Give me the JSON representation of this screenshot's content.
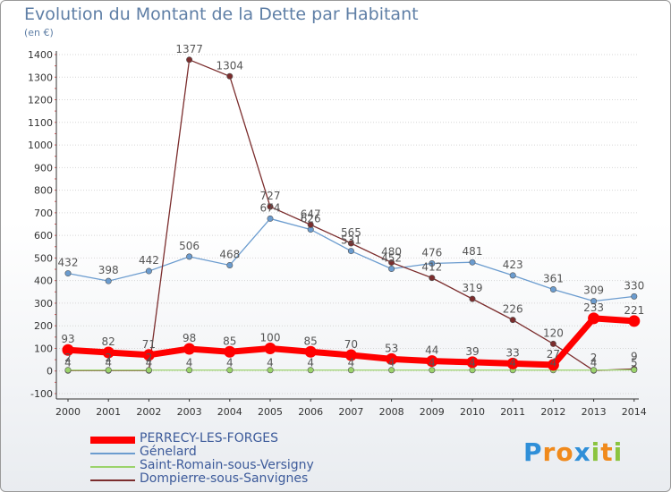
{
  "chart_data": {
    "type": "line",
    "title": "Evolution du Montant de la Dette par Habitant",
    "subtitle": "(en €)",
    "x": [
      "2000",
      "2001",
      "2002",
      "2003",
      "2004",
      "2005",
      "2006",
      "2007",
      "2008",
      "2009",
      "2010",
      "2011",
      "2012",
      "2013",
      "2014"
    ],
    "yticks": [
      -100,
      0,
      100,
      200,
      300,
      400,
      500,
      600,
      700,
      800,
      900,
      1000,
      1100,
      1200,
      1300,
      1400
    ],
    "ylim": [
      -100,
      1400
    ],
    "grid": "horizontal",
    "legend_position": "bottom-left",
    "series": [
      {
        "name": "PERRECY-LES-FORGES",
        "color": "#ff0000",
        "values": [
          93,
          82,
          71,
          98,
          85,
          100,
          85,
          70,
          53,
          44,
          39,
          33,
          27,
          233,
          221
        ],
        "labels": [
          "93",
          "82",
          "71",
          "98",
          "85",
          "100",
          "85",
          "70",
          "53",
          "44",
          "39",
          "33",
          "27",
          "233",
          "221"
        ]
      },
      {
        "name": "Génelard",
        "color": "#6b9ccf",
        "values": [
          432,
          398,
          442,
          506,
          468,
          674,
          626,
          531,
          452,
          476,
          481,
          423,
          361,
          309,
          330
        ],
        "labels": [
          "432",
          "398",
          "442",
          "506",
          "468",
          "674",
          "626",
          "531",
          "452",
          "476",
          "481",
          "423",
          "361",
          "309",
          "330"
        ]
      },
      {
        "name": "Saint-Romain-sous-Versigny",
        "color": "#9bd36b",
        "values": [
          4,
          4,
          4,
          4,
          4,
          4,
          4,
          4,
          4,
          4,
          4,
          4,
          4,
          4,
          5
        ],
        "labels": [
          "4",
          "4",
          "4",
          "4",
          "4",
          "4",
          "4",
          "4",
          "4",
          "4",
          "4",
          "4",
          "4",
          "4",
          "5"
        ]
      },
      {
        "name": "Dompierre-sous-Sanvignes",
        "color": "#7b2d2d",
        "values": [
          2,
          2,
          2,
          1377,
          1304,
          727,
          647,
          565,
          480,
          412,
          319,
          226,
          120,
          2,
          9
        ],
        "labels": [
          "2",
          "2",
          "2",
          "1377",
          "1304",
          "727",
          "647",
          "565",
          "480",
          "412",
          "319",
          "226",
          "120",
          "2",
          "9"
        ]
      }
    ]
  },
  "logo": {
    "text": "Proxiti",
    "letters": [
      "P",
      "r",
      "o",
      "x",
      "i",
      "t",
      "i"
    ],
    "colors": [
      "#2f8fd8",
      "#f08a1c",
      "#f08a1c",
      "#2f8fd8",
      "#8bc43f",
      "#f08a1c",
      "#8bc43f"
    ]
  }
}
